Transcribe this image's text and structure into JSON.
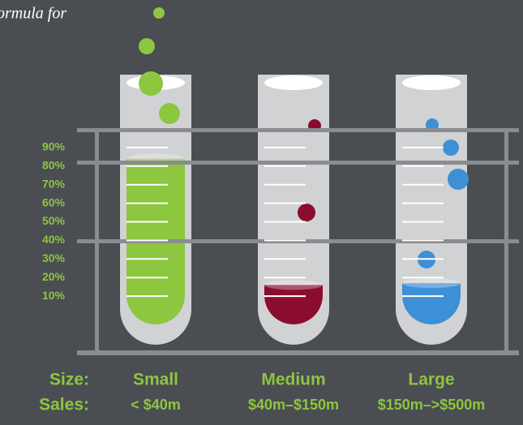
{
  "chart_data": {
    "type": "tube",
    "title": "ormula for",
    "categories": [
      "Small",
      "Medium",
      "Large"
    ],
    "values": [
      84,
      16,
      17
    ],
    "colors": [
      "#8dc63f",
      "#8b0d2e",
      "#3d8fd6"
    ],
    "ylim": [
      0,
      100
    ],
    "yticks": [
      {
        "value": 10,
        "label": "10%"
      },
      {
        "value": 20,
        "label": "20%"
      },
      {
        "value": 30,
        "label": "30%"
      },
      {
        "value": 40,
        "label": "40%"
      },
      {
        "value": 50,
        "label": "50%"
      },
      {
        "value": 60,
        "label": "60%"
      },
      {
        "value": 70,
        "label": "70%"
      },
      {
        "value": 80,
        "label": "80%"
      },
      {
        "value": 90,
        "label": "90%"
      }
    ],
    "row_labels": [
      "Size:",
      "Sales:"
    ],
    "sales": [
      "< $40m",
      "$40m–$150m",
      "$150m–>$500m"
    ]
  }
}
